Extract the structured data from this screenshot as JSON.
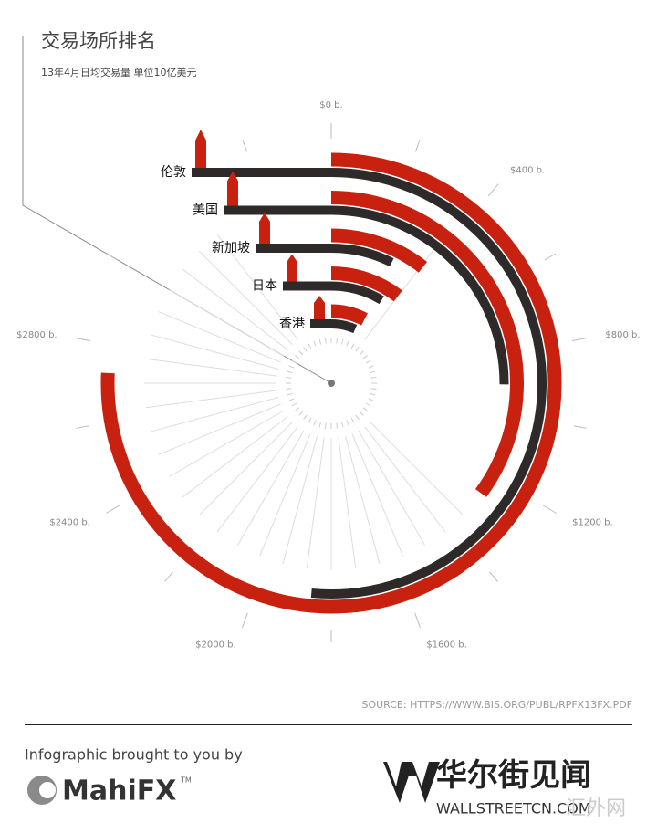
{
  "chart_data": {
    "type": "radial-bar",
    "title": "交易场所排名",
    "subtitle": "13年4月日均交易量 单位10亿美元",
    "categories": [
      "伦敦",
      "美国",
      "新加坡",
      "日本",
      "香港"
    ],
    "series": [
      {
        "color": "#c8210f",
        "values": [
          2726,
          1263,
          383,
          374,
          275
        ]
      },
      {
        "color": "#2e2a29",
        "values": [
          1854,
          904,
          266,
          312,
          238
        ]
      }
    ],
    "ylim": [
      0,
      3600
    ],
    "yticks": [
      {
        "value": 0,
        "label": "$0 b."
      },
      {
        "value": 400,
        "label": "$400 b."
      },
      {
        "value": 800,
        "label": "$800 b."
      },
      {
        "value": 1200,
        "label": "$1200 b."
      },
      {
        "value": 1600,
        "label": "$1600 b."
      },
      {
        "value": 2000,
        "label": "$2000 b."
      },
      {
        "value": 2400,
        "label": "$2400 b."
      },
      {
        "value": 2800,
        "label": "$2800 b."
      }
    ],
    "source": "SOURCE: HTTPS://WWW.BIS.ORG/PUBL/RPFX13FX.PDF"
  },
  "footer": {
    "credit": "Infographic brought to you by",
    "sponsor": "MahiFX",
    "trademark": "TM",
    "brand": "华尔街见闻",
    "brand_url": "WALLSTREETCN.COM",
    "watermark": "汇外网"
  }
}
